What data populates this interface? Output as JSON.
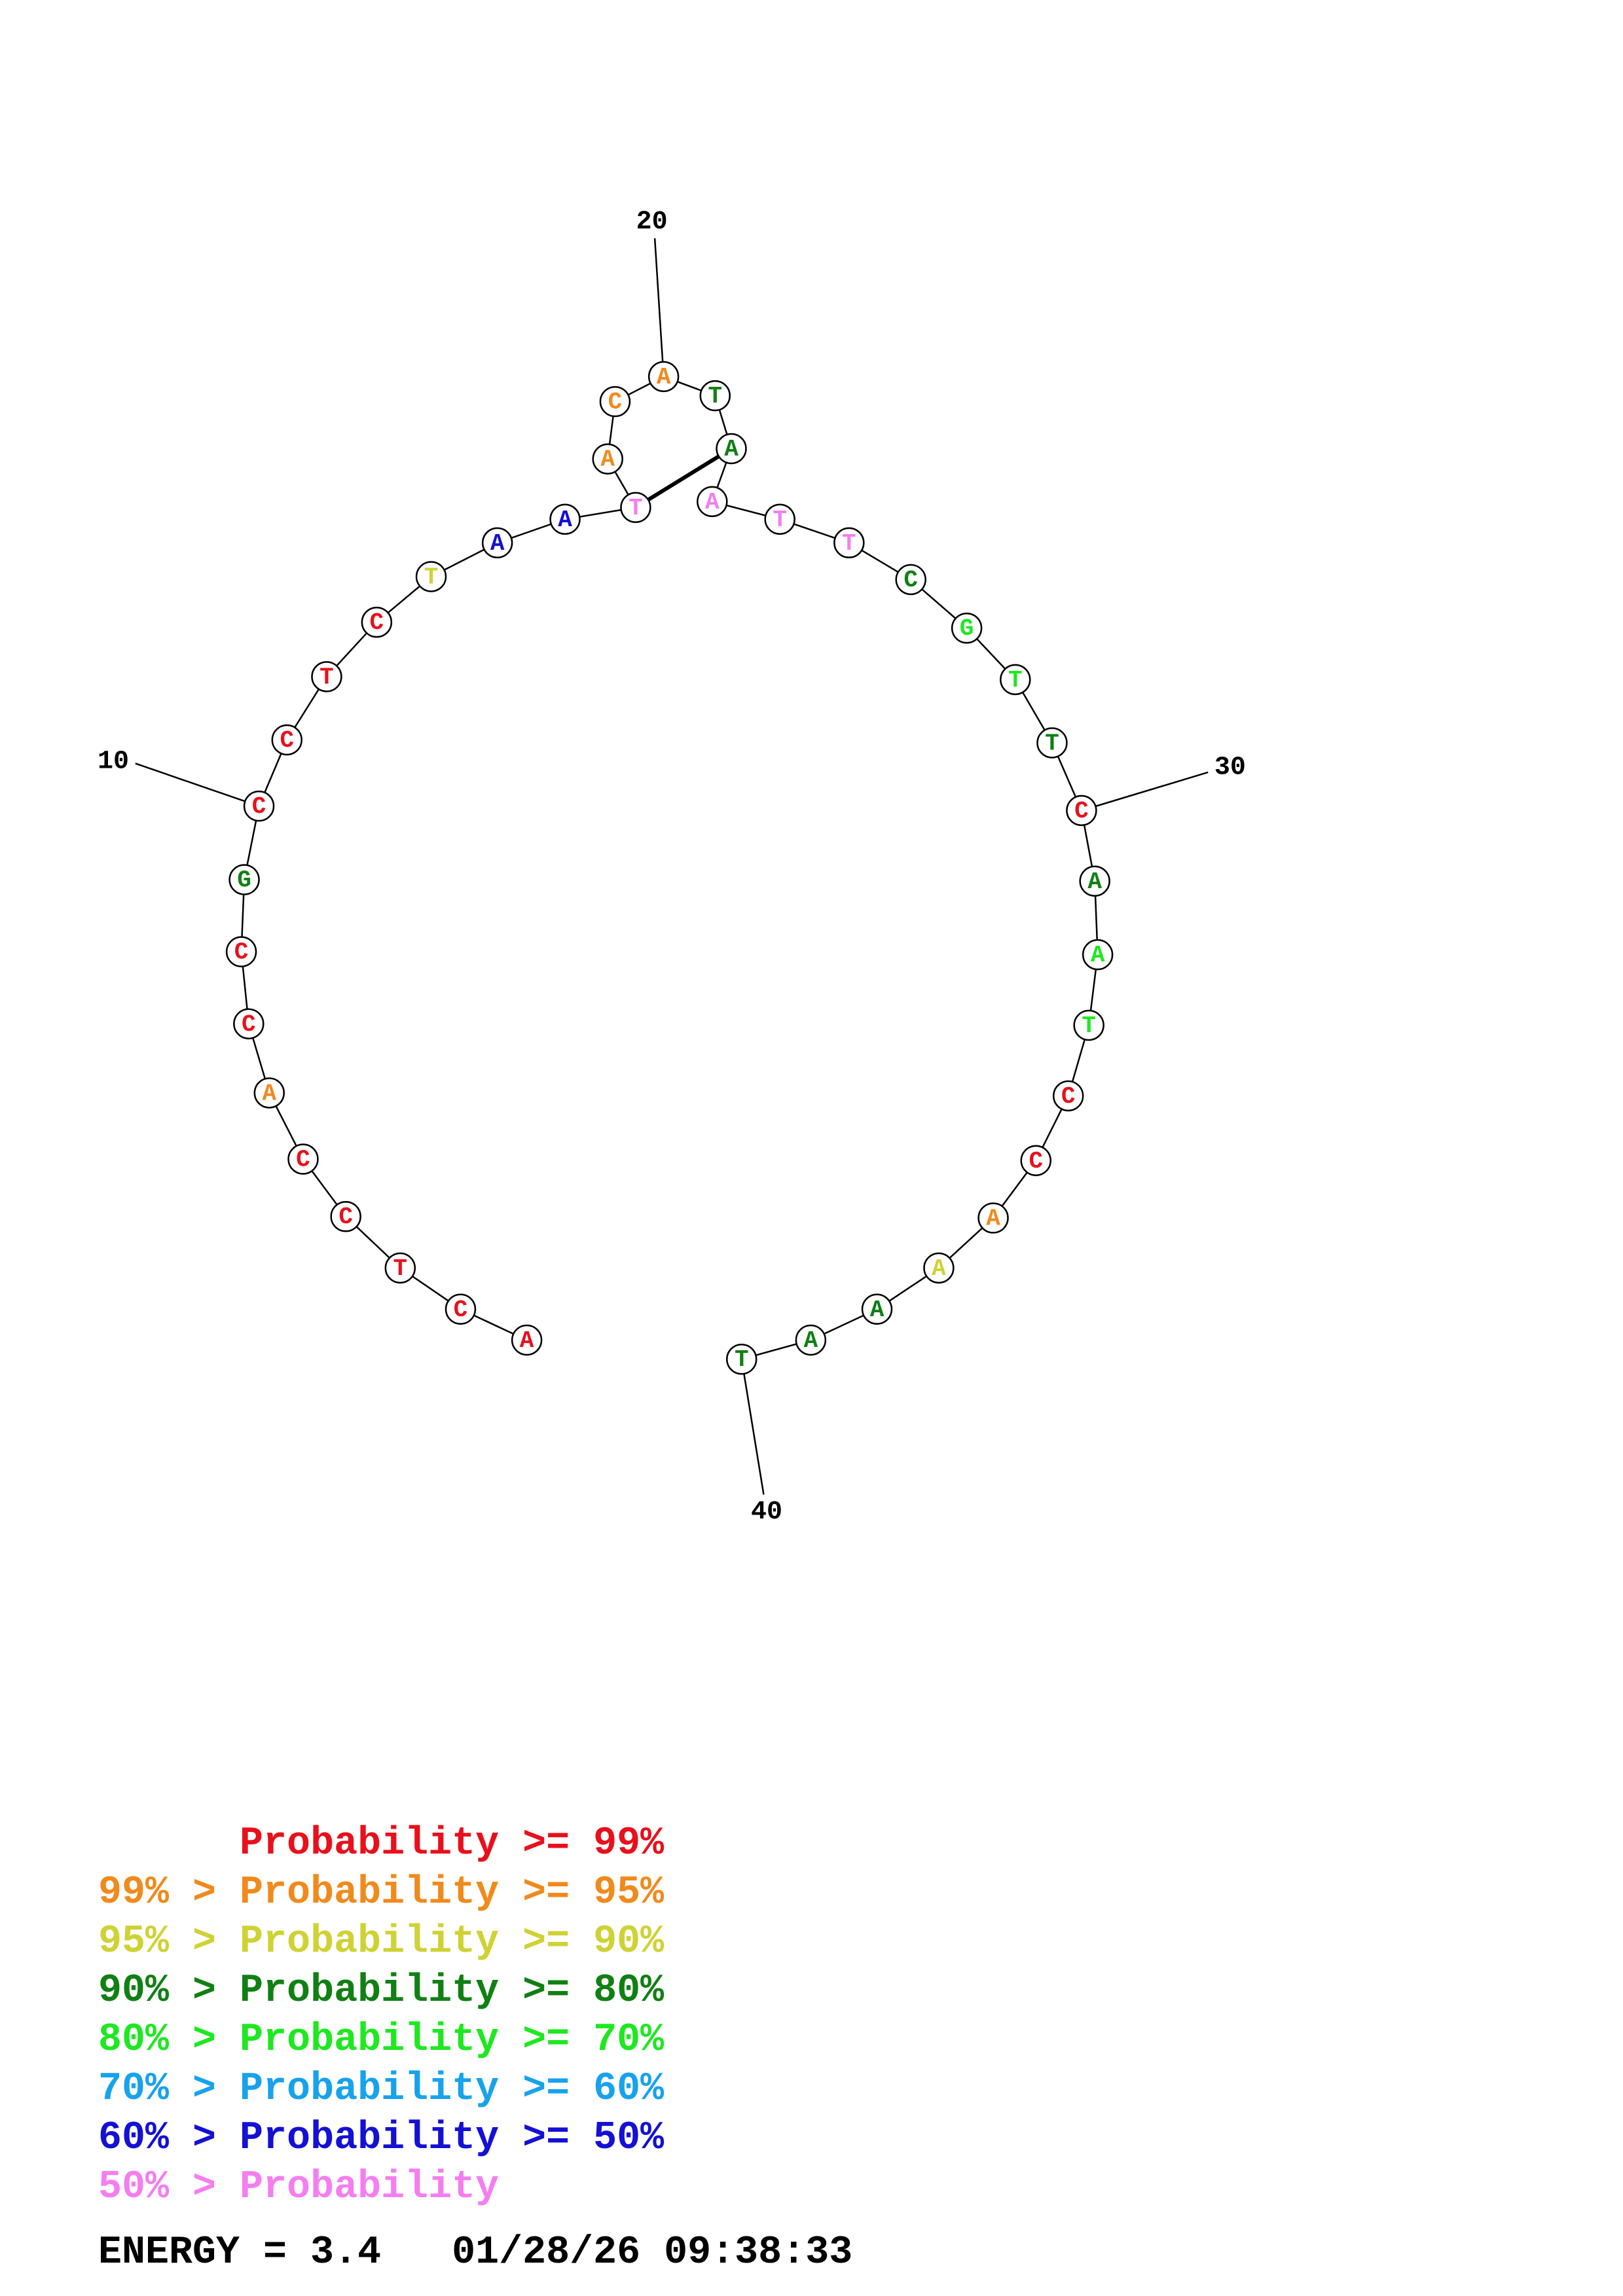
{
  "structure": {
    "sequence": [
      "A",
      "C",
      "T",
      "C",
      "C",
      "A",
      "C",
      "C",
      "G",
      "C",
      "C",
      "T",
      "C",
      "T",
      "A",
      "A",
      "T",
      "A",
      "C",
      "A",
      "T",
      "A",
      "A",
      "T",
      "T",
      "C",
      "G",
      "T",
      "T",
      "C",
      "A",
      "A",
      "T",
      "C",
      "C",
      "A",
      "A",
      "A",
      "A",
      "T"
    ],
    "confidence_class": [
      0,
      0,
      0,
      0,
      0,
      1,
      0,
      0,
      3,
      0,
      0,
      0,
      0,
      2,
      6,
      6,
      7,
      1,
      1,
      1,
      3,
      3,
      7,
      7,
      7,
      3,
      4,
      4,
      3,
      0,
      3,
      4,
      4,
      0,
      0,
      1,
      2,
      3,
      3,
      3
    ],
    "pairs": [
      [
        17,
        22
      ]
    ],
    "position_labels": [
      "10",
      "20",
      "30",
      "40"
    ],
    "labeled_positions": [
      10,
      20,
      30,
      40
    ]
  },
  "legend": {
    "rows": [
      {
        "prefix": "",
        "text": "Probability >= 99%",
        "color": "#e8101c"
      },
      {
        "prefix": "99% > ",
        "text": "Probability >= 95%",
        "color": "#f08a1c"
      },
      {
        "prefix": "95% > ",
        "text": "Probability >= 90%",
        "color": "#cfd234"
      },
      {
        "prefix": "90% > ",
        "text": "Probability >= 80%",
        "color": "#118014"
      },
      {
        "prefix": "80% > ",
        "text": "Probability >= 70%",
        "color": "#1ee820"
      },
      {
        "prefix": "70% > ",
        "text": "Probability >= 60%",
        "color": "#18a2ec"
      },
      {
        "prefix": "60% > ",
        "text": "Probability >= 50%",
        "color": "#1410d4"
      },
      {
        "prefix": "50% > ",
        "text": "Probability",
        "color": "#f47ef0"
      }
    ]
  },
  "footer": {
    "energy_label": "ENERGY = 3.4",
    "timestamp": "01/28/26 09:38:33"
  }
}
